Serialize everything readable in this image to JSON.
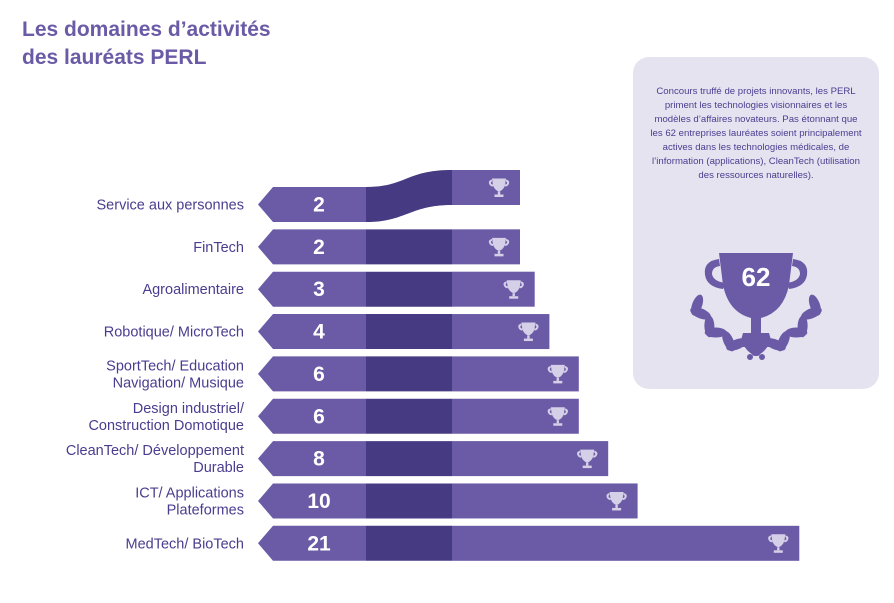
{
  "title_lines": [
    "Les domaines d’activités",
    "des lauréats PERL"
  ],
  "info": {
    "text": "Concours truffé de projets innovants, les PERL priment les technologies visionnaires et les modèles d’affaires novateurs. Pas étonnant que les 62 entreprises lauréates soient principalement actives dans les technologies médicales, de l’information (applications), CleanTech (utilisation des ressources naturelles).",
    "total": "62"
  },
  "colors": {
    "tag": "#6b5aa6",
    "middle": "#463a82",
    "bar": "#6b5aa6",
    "text": "#4a3d8f",
    "box": "#e6e3f1"
  },
  "icons": {
    "bar_end": "trophy-icon",
    "info": "laurel-trophy-icon"
  },
  "chart_data": {
    "type": "bar",
    "orientation": "horizontal",
    "categories": [
      [
        "Service aux personnes"
      ],
      [
        "FinTech"
      ],
      [
        "Agroalimentaire"
      ],
      [
        "Robotique/ MicroTech"
      ],
      [
        "SportTech/ Education",
        "Navigation/ Musique"
      ],
      [
        "Design industriel/",
        "Construction Domotique"
      ],
      [
        "CleanTech/ Développement",
        "Durable"
      ],
      [
        "ICT/ Applications",
        "Plateformes"
      ],
      [
        "MedTech/ BioTech"
      ]
    ],
    "values": [
      2,
      2,
      3,
      4,
      6,
      6,
      8,
      10,
      21
    ],
    "data_labels": [
      "2",
      "2",
      "3",
      "4",
      "6",
      "6",
      "8",
      "10",
      "21"
    ],
    "title": "Les domaines d’activités des lauréats PERL",
    "xlabel": "",
    "ylabel": "",
    "grid": false,
    "legend": "none"
  }
}
